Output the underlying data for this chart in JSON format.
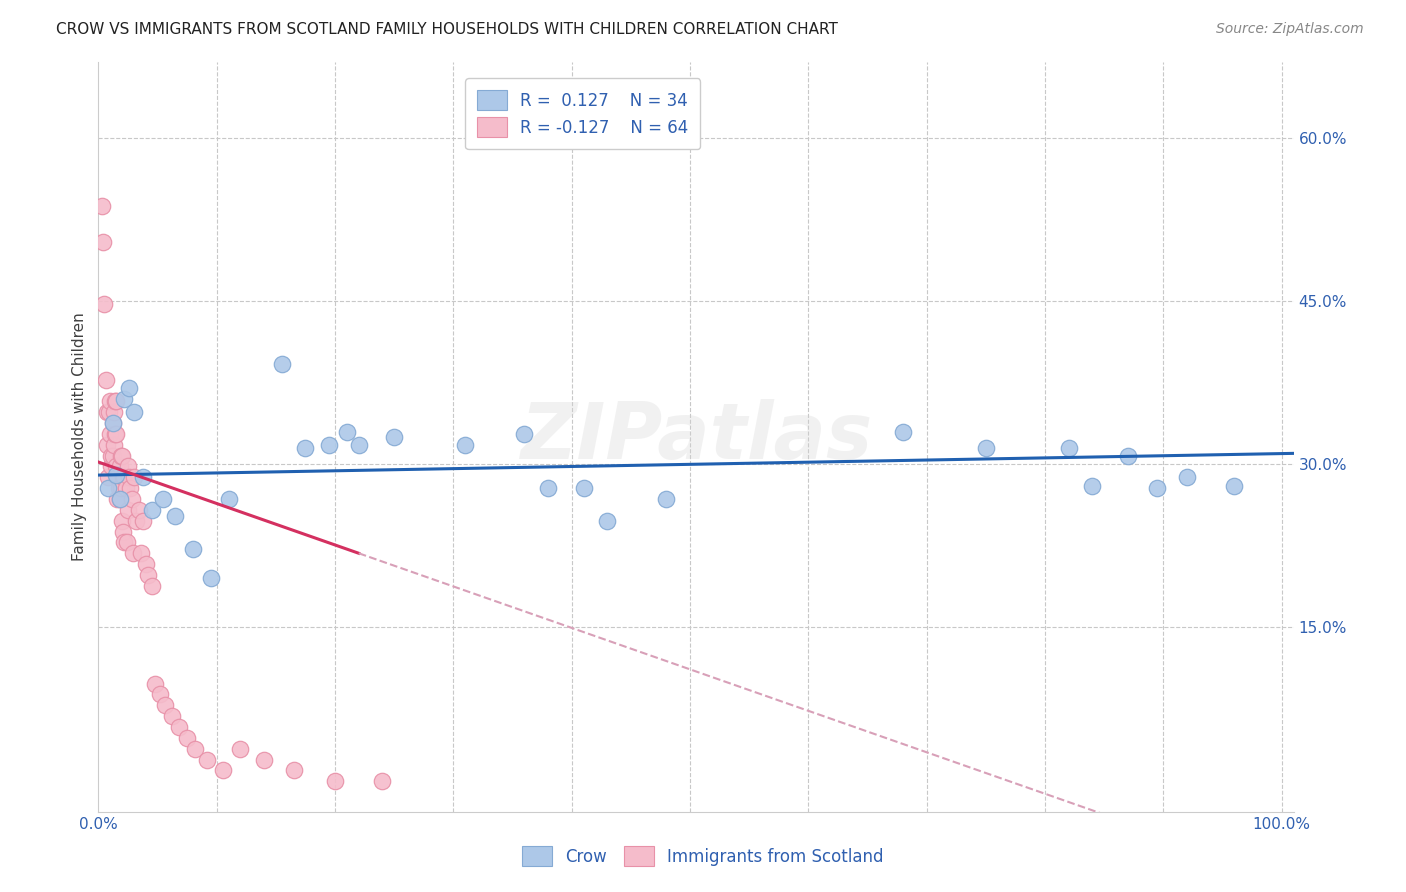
{
  "title": "CROW VS IMMIGRANTS FROM SCOTLAND FAMILY HOUSEHOLDS WITH CHILDREN CORRELATION CHART",
  "source": "Source: ZipAtlas.com",
  "ylabel": "Family Households with Children",
  "crow_color": "#adc8e8",
  "crow_edge_color": "#85aad4",
  "scotland_color": "#f5bccb",
  "scotland_edge_color": "#e891a8",
  "crow_line_color": "#2060b0",
  "scotland_line_color": "#d43060",
  "scotland_dashed_color": "#d8a0b8",
  "grid_color": "#c8c8c8",
  "bg_color": "#ffffff",
  "watermark": "ZIPatlas",
  "legend_r_crow": "R =  0.127",
  "legend_n_crow": "N = 34",
  "legend_r_scotland": "R = -0.127",
  "legend_n_scotland": "N = 64",
  "crow_x": [
    0.008,
    0.012,
    0.015,
    0.018,
    0.022,
    0.026,
    0.03,
    0.038,
    0.045,
    0.055,
    0.065,
    0.08,
    0.095,
    0.11,
    0.155,
    0.175,
    0.195,
    0.21,
    0.22,
    0.25,
    0.31,
    0.36,
    0.38,
    0.41,
    0.43,
    0.48,
    0.68,
    0.75,
    0.82,
    0.84,
    0.87,
    0.895,
    0.92,
    0.96
  ],
  "crow_y": [
    0.278,
    0.338,
    0.29,
    0.268,
    0.36,
    0.37,
    0.348,
    0.288,
    0.258,
    0.268,
    0.252,
    0.222,
    0.195,
    0.268,
    0.392,
    0.315,
    0.318,
    0.33,
    0.318,
    0.325,
    0.318,
    0.328,
    0.278,
    0.278,
    0.248,
    0.268,
    0.33,
    0.315,
    0.315,
    0.28,
    0.308,
    0.278,
    0.288,
    0.28
  ],
  "scotland_x": [
    0.003,
    0.004,
    0.005,
    0.006,
    0.007,
    0.007,
    0.008,
    0.009,
    0.01,
    0.01,
    0.011,
    0.011,
    0.012,
    0.012,
    0.013,
    0.013,
    0.014,
    0.014,
    0.015,
    0.015,
    0.015,
    0.016,
    0.016,
    0.017,
    0.018,
    0.018,
    0.019,
    0.019,
    0.02,
    0.02,
    0.021,
    0.021,
    0.022,
    0.022,
    0.023,
    0.024,
    0.025,
    0.025,
    0.026,
    0.027,
    0.028,
    0.029,
    0.03,
    0.032,
    0.034,
    0.036,
    0.038,
    0.04,
    0.042,
    0.045,
    0.048,
    0.052,
    0.056,
    0.062,
    0.068,
    0.075,
    0.082,
    0.092,
    0.105,
    0.12,
    0.14,
    0.165,
    0.2,
    0.24
  ],
  "scotland_y": [
    0.538,
    0.505,
    0.448,
    0.378,
    0.348,
    0.318,
    0.288,
    0.348,
    0.358,
    0.328,
    0.298,
    0.308,
    0.338,
    0.308,
    0.318,
    0.348,
    0.358,
    0.328,
    0.358,
    0.328,
    0.298,
    0.268,
    0.288,
    0.278,
    0.268,
    0.298,
    0.278,
    0.308,
    0.308,
    0.248,
    0.238,
    0.288,
    0.288,
    0.228,
    0.278,
    0.228,
    0.298,
    0.258,
    0.288,
    0.278,
    0.268,
    0.218,
    0.288,
    0.248,
    0.258,
    0.218,
    0.248,
    0.208,
    0.198,
    0.188,
    0.098,
    0.088,
    0.078,
    0.068,
    0.058,
    0.048,
    0.038,
    0.028,
    0.018,
    0.038,
    0.028,
    0.018,
    0.008,
    0.008
  ],
  "xlim": [
    0.0,
    1.01
  ],
  "ylim": [
    -0.02,
    0.67
  ],
  "title_fontsize": 11,
  "source_fontsize": 10,
  "tick_fontsize": 11,
  "label_fontsize": 11
}
